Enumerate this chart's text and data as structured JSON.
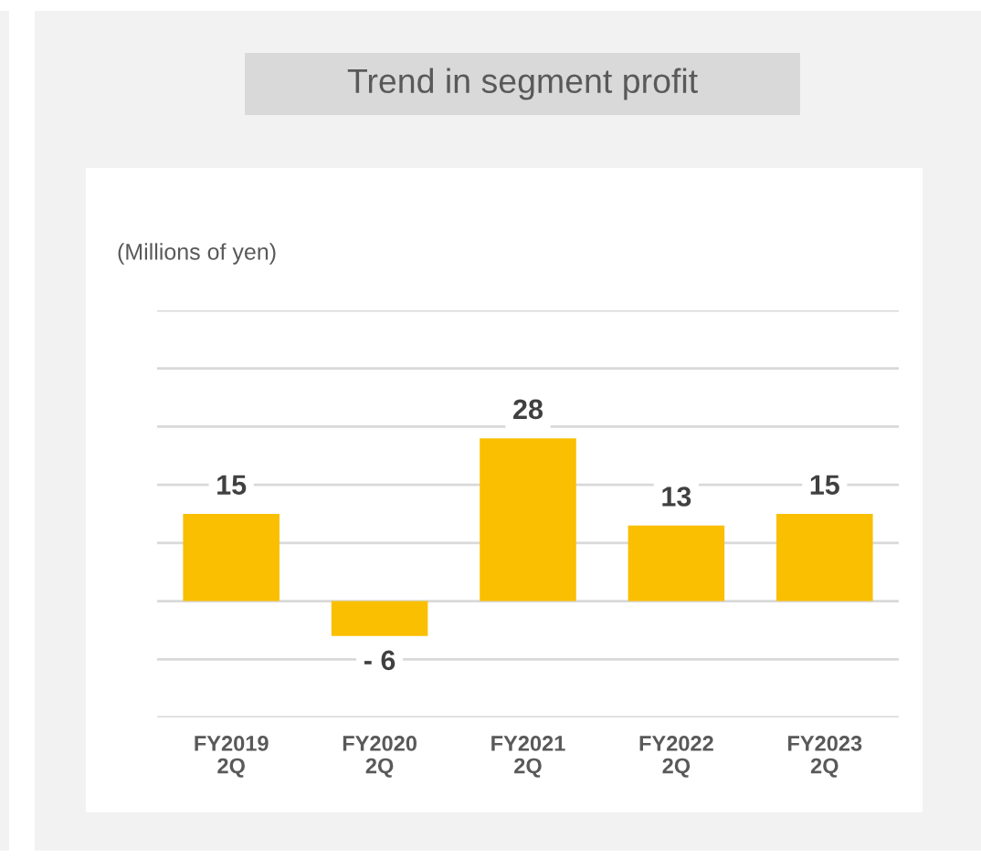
{
  "chart_data": {
    "type": "bar",
    "title": "Trend in segment profit",
    "ylabel": "(Millions of yen)",
    "categories": [
      "FY2019\n2Q",
      "FY2020\n2Q",
      "FY2021\n2Q",
      "FY2022\n2Q",
      "FY2023\n2Q"
    ],
    "values": [
      15,
      -6,
      28,
      13,
      15
    ],
    "color": "#f9bf00",
    "value_labels": [
      "15",
      "- 6",
      "28",
      "13",
      "15"
    ],
    "ylim": [
      -20,
      50
    ],
    "yticks": [
      {
        "value": -20,
        "label": null
      },
      {
        "value": -10,
        "label": null
      },
      {
        "value": 0,
        "label": null
      },
      {
        "value": 10,
        "label": null
      },
      {
        "value": 20,
        "label": null
      },
      {
        "value": 30,
        "label": null
      },
      {
        "value": 40,
        "label": null
      },
      {
        "value": 50,
        "label": null
      }
    ],
    "grid": "y",
    "tick_labels": "x"
  }
}
